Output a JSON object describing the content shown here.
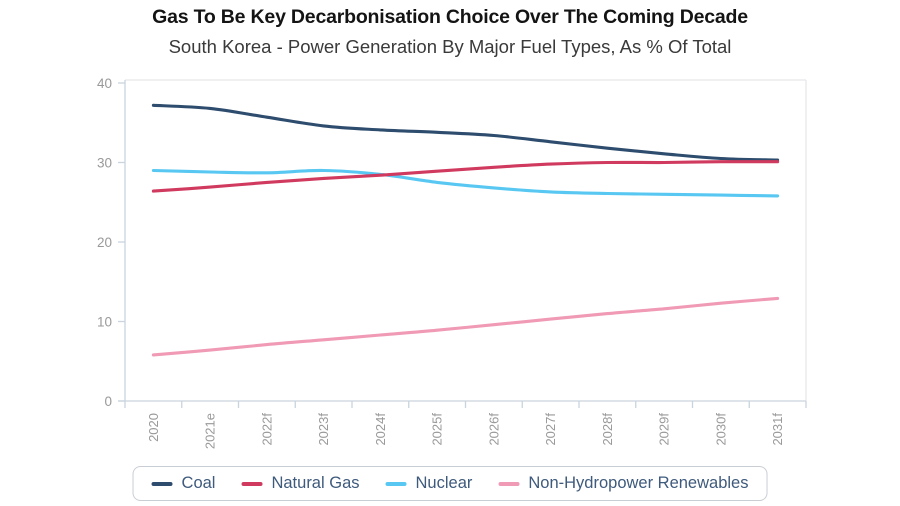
{
  "title": "Gas To Be Key Decarbonisation Choice Over The Coming Decade",
  "subtitle": "South Korea - Power Generation By Major Fuel Types, As % Of Total",
  "chart_data": {
    "type": "line",
    "title": "Gas To Be Key Decarbonisation Choice Over The Coming Decade",
    "subtitle": "South Korea - Power Generation By Major Fuel Types, As % Of Total",
    "categories": [
      "2020",
      "2021e",
      "2022f",
      "2023f",
      "2024f",
      "2025f",
      "2026f",
      "2027f",
      "2028f",
      "2029f",
      "2030f",
      "2031f"
    ],
    "series": [
      {
        "name": "Coal",
        "color": "#2e4d6e",
        "values": [
          37.2,
          36.8,
          35.7,
          34.6,
          34.1,
          33.8,
          33.4,
          32.6,
          31.8,
          31.1,
          30.5,
          30.3
        ]
      },
      {
        "name": "Natural Gas",
        "color": "#d13a5f",
        "values": [
          26.4,
          26.9,
          27.5,
          28.0,
          28.4,
          28.9,
          29.4,
          29.8,
          30.0,
          30.0,
          30.1,
          30.1
        ]
      },
      {
        "name": "Nuclear",
        "color": "#58c8f2",
        "values": [
          29.0,
          28.8,
          28.7,
          29.0,
          28.5,
          27.5,
          26.8,
          26.3,
          26.1,
          26.0,
          25.9,
          25.8
        ]
      },
      {
        "name": "Non-Hydropower Renewables",
        "color": "#f09ab5",
        "values": [
          5.8,
          6.4,
          7.1,
          7.7,
          8.3,
          8.9,
          9.6,
          10.3,
          11.0,
          11.6,
          12.3,
          12.9
        ]
      }
    ],
    "xlabel": "",
    "ylabel": "",
    "ylim": [
      0,
      40
    ],
    "yticks": [
      0,
      10,
      20,
      30,
      40
    ],
    "grid": false,
    "legend_position": "bottom"
  },
  "colors": {
    "title": "#141414",
    "subtitle": "#3a3a3a",
    "axis_label": "#999999",
    "axis_line": "#c9d4de",
    "plot_border": "#e8e8ea",
    "legend_text": "#3e5a7c",
    "legend_border": "#c9cdd4",
    "background": "#ffffff"
  }
}
